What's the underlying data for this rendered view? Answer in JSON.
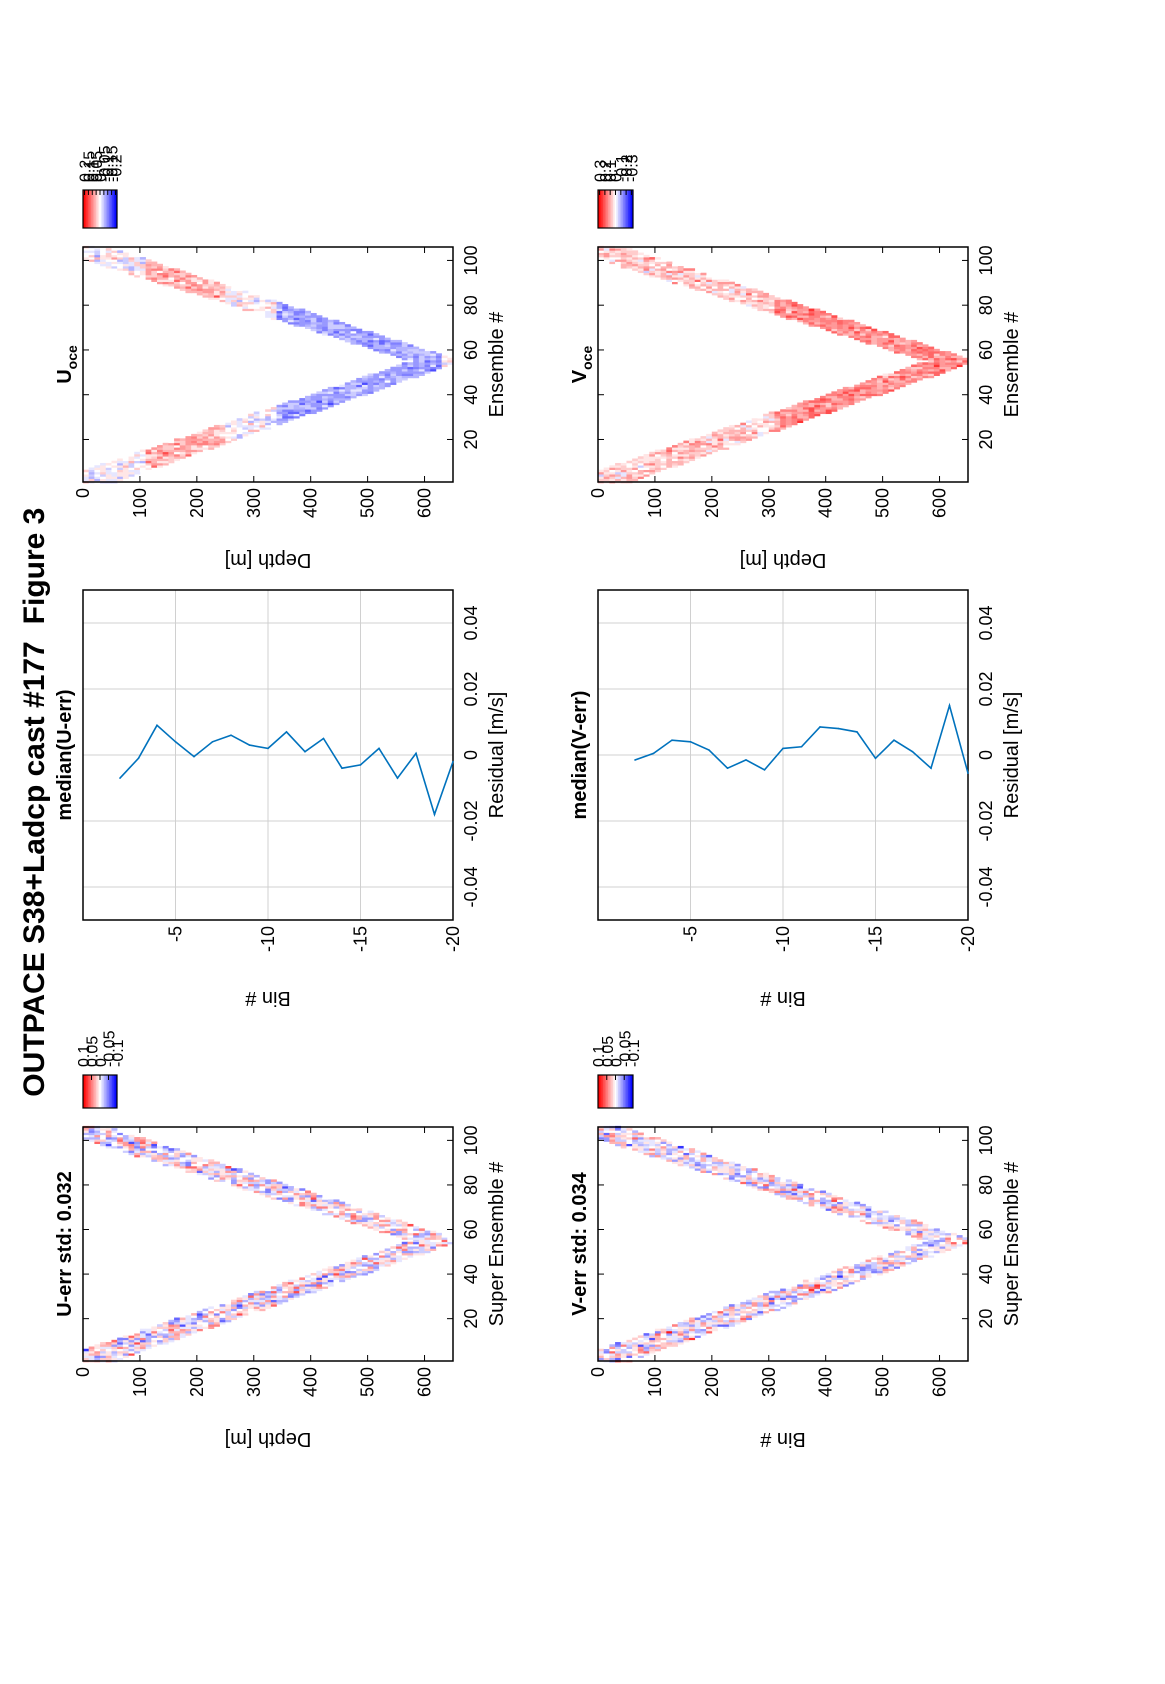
{
  "figure": {
    "title": "OUTPACE S38+Ladcp cast #177",
    "label": "Figure 3"
  },
  "colors": {
    "line": "#0072bd",
    "grid": "#d0d0d0",
    "positive": "#ff0000",
    "negative": "#0000ff"
  },
  "chart_data": [
    {
      "id": "u-err",
      "type": "heatmap",
      "title": "U-err std: 0.032",
      "xlabel": "Super Ensemble #",
      "ylabel": "Depth [m]",
      "xticks": [
        20,
        40,
        60,
        80,
        100
      ],
      "yticks": [
        0,
        100,
        200,
        300,
        400,
        500,
        600
      ],
      "xlim": [
        1,
        106
      ],
      "ylim": [
        0,
        650
      ],
      "orientation": "rotated-90",
      "bottom_depth": 630,
      "turn_ensemble": 55,
      "colorbar": {
        "clim": [
          -0.1,
          0.1
        ],
        "ticks": [
          0.1,
          0.05,
          0,
          -0.05,
          -0.1
        ],
        "labels": [
          "0.1",
          "0.05",
          "0",
          "-0.05",
          "-0.1"
        ]
      }
    },
    {
      "id": "median-u-err",
      "type": "line",
      "title": "median(U-err)",
      "xlabel": "Residual [m/s]",
      "ylabel": "Bin #",
      "xticks": [
        -0.04,
        -0.02,
        0,
        0.02,
        0.04
      ],
      "yticks": [
        -5,
        -10,
        -15,
        -20
      ],
      "xlim": [
        -0.05,
        0.05
      ],
      "ylim": [
        -20,
        0
      ],
      "grid": true,
      "orientation": "rotated-90",
      "series": [
        {
          "x": [
            -0.007,
            -0.001,
            0.009,
            0.004,
            -0.0005,
            0.004,
            0.006,
            0.003,
            0.002,
            0.007,
            0.001,
            0.005,
            -0.004,
            -0.003,
            0.002,
            -0.007,
            0.0005,
            -0.018,
            -0.002
          ],
          "y": [
            -2,
            -3,
            -4,
            -5,
            -6,
            -7,
            -8,
            -9,
            -10,
            -11,
            -12,
            -13,
            -14,
            -15,
            -16,
            -17,
            -18,
            -19,
            -20
          ]
        }
      ]
    },
    {
      "id": "u-oce",
      "type": "heatmap",
      "title": "U",
      "title_subscript": "oce",
      "xlabel": "Ensemble #",
      "ylabel": "Depth [m]",
      "xticks": [
        20,
        40,
        60,
        80,
        100
      ],
      "yticks": [
        0,
        100,
        200,
        300,
        400,
        500,
        600
      ],
      "xlim": [
        1,
        106
      ],
      "ylim": [
        0,
        650
      ],
      "orientation": "rotated-90",
      "bottom_depth": 630,
      "turn_ensemble": 55,
      "colorbar": {
        "clim": [
          -0.22,
          0.22
        ],
        "ticks": [
          0.2,
          0.15,
          0.1,
          0.05,
          0,
          -0.05,
          -0.1,
          -0.15,
          -0.2
        ],
        "labels": [
          "0.2",
          "0.15",
          "0.1",
          "0.05",
          "0",
          "-0.05",
          "-0.1",
          "-0.15",
          "-0.2"
        ]
      }
    },
    {
      "id": "v-err",
      "type": "heatmap",
      "title": "V-err std: 0.034",
      "xlabel": "Super Ensemble #",
      "ylabel": "Bin #",
      "xticks": [
        20,
        40,
        60,
        80,
        100
      ],
      "yticks": [
        0,
        100,
        200,
        300,
        400,
        500,
        600
      ],
      "xlim": [
        1,
        106
      ],
      "ylim": [
        0,
        650
      ],
      "orientation": "rotated-90",
      "bottom_depth": 630,
      "turn_ensemble": 55,
      "colorbar": {
        "clim": [
          -0.1,
          0.1
        ],
        "ticks": [
          0.1,
          0.05,
          0,
          -0.05,
          -0.1
        ],
        "labels": [
          "0.1",
          "0.05",
          "0",
          "-0.05",
          "-0.1"
        ]
      }
    },
    {
      "id": "median-v-err",
      "type": "line",
      "title": "median(V-err)",
      "xlabel": "Residual [m/s]",
      "ylabel": "Bin #",
      "xticks": [
        -0.04,
        -0.02,
        0,
        0.02,
        0.04
      ],
      "yticks": [
        -5,
        -10,
        -15,
        -20
      ],
      "xlim": [
        -0.05,
        0.05
      ],
      "ylim": [
        -20,
        0
      ],
      "grid": true,
      "orientation": "rotated-90",
      "series": [
        {
          "x": [
            -0.0015,
            0.0005,
            0.0045,
            0.004,
            0.0015,
            -0.004,
            -0.0015,
            -0.0045,
            0.002,
            0.0025,
            0.0085,
            0.008,
            0.007,
            -0.001,
            0.0045,
            0.001,
            -0.004,
            0.015,
            -0.0055
          ],
          "y": [
            -2,
            -3,
            -4,
            -5,
            -6,
            -7,
            -8,
            -9,
            -10,
            -11,
            -12,
            -13,
            -14,
            -15,
            -16,
            -17,
            -18,
            -19,
            -20
          ]
        }
      ]
    },
    {
      "id": "v-oce",
      "type": "heatmap",
      "title": "V",
      "title_subscript": "oce",
      "xlabel": "Ensemble #",
      "ylabel": "Depth [m]",
      "xticks": [
        20,
        40,
        60,
        80,
        100
      ],
      "yticks": [
        0,
        100,
        200,
        300,
        400,
        500,
        600
      ],
      "xlim": [
        1,
        106
      ],
      "ylim": [
        0,
        650
      ],
      "orientation": "rotated-90",
      "bottom_depth": 630,
      "turn_ensemble": 55,
      "colorbar": {
        "clim": [
          -0.33,
          0.33
        ],
        "ticks": [
          0.3,
          0.2,
          0.1,
          0,
          -0.1,
          -0.2,
          -0.3
        ],
        "labels": [
          "0.3",
          "0.2",
          "0.1",
          "0",
          "-0.1",
          "-0.2",
          "-0.3"
        ]
      }
    }
  ]
}
